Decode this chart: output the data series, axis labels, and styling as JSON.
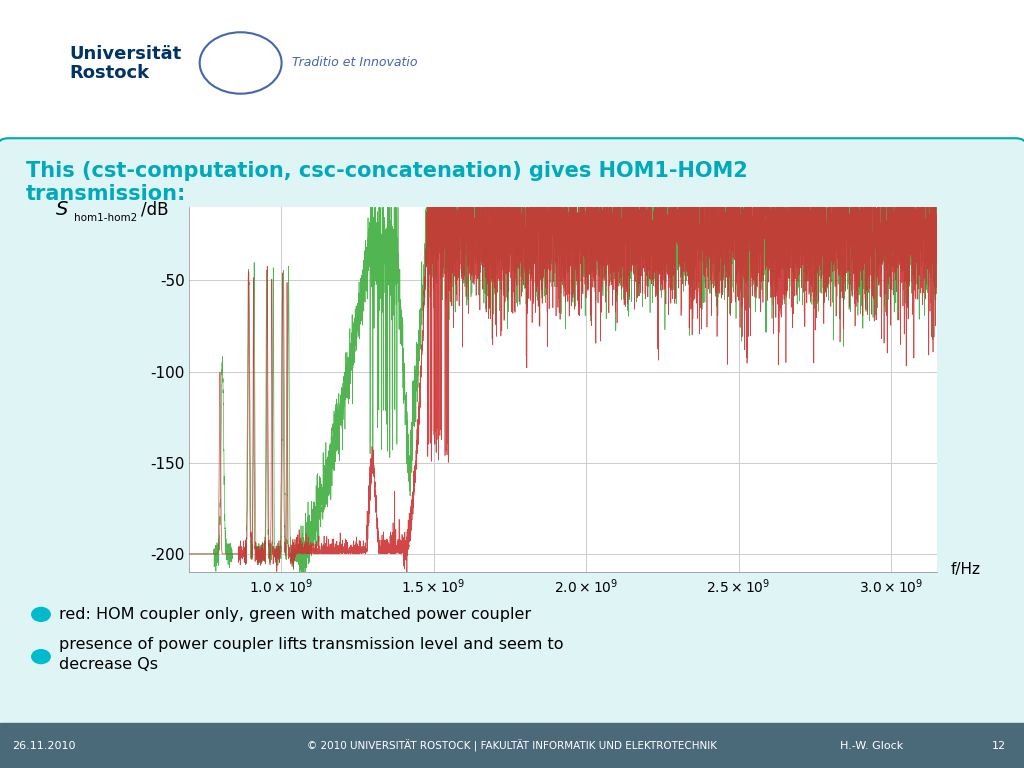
{
  "title_line1": "This (cst-computation, csc-concatenation) gives HOM1-HOM2",
  "title_line2": "transmission:",
  "title_color": "#00AABB",
  "ylabel_S": "S",
  "ylabel_sub": "hom1-hom2",
  "ylabel_unit": "/dB",
  "xlabel": "f/Hz",
  "xlim": [
    700000000.0,
    3150000000.0
  ],
  "ylim": [
    -210,
    -10
  ],
  "yticks": [
    -200,
    -150,
    -100,
    -50
  ],
  "xtick_values": [
    1000000000.0,
    1500000000.0,
    2000000000.0,
    2500000000.0,
    3000000000.0
  ],
  "bullet_color": "#00BBCC",
  "bullet1": "red: HOM coupler only, green with matched power coupler",
  "bullet2_line1": "presence of power coupler lifts transmission level and seem to",
  "bullet2_line2": "decrease Qs",
  "footer_left": "26.11.2010",
  "footer_center": "© 2010 UNIVERSITÄT ROSTOCK | FAKULTÄT INFORMATIK UND ELEKTROTECHNIK",
  "footer_right": "H.-W. Glock",
  "footer_page": "12",
  "bg_color": "#FFFFFF",
  "slide_bg": "#DFF4F4",
  "border_color": "#00AAAA",
  "plot_bg": "#FFFFFF",
  "grid_color": "#CCCCCC",
  "red_color": "#CC3333",
  "green_color": "#33AA33",
  "footer_bg": "#4A6A7A"
}
